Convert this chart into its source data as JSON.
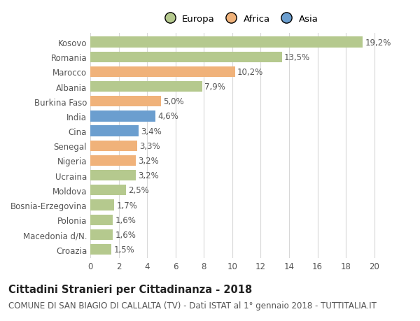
{
  "countries": [
    "Kosovo",
    "Romania",
    "Marocco",
    "Albania",
    "Burkina Faso",
    "India",
    "Cina",
    "Senegal",
    "Nigeria",
    "Ucraina",
    "Moldova",
    "Bosnia-Erzegovina",
    "Polonia",
    "Macedonia d/N.",
    "Croazia"
  ],
  "values": [
    19.2,
    13.5,
    10.2,
    7.9,
    5.0,
    4.6,
    3.4,
    3.3,
    3.2,
    3.2,
    2.5,
    1.7,
    1.6,
    1.6,
    1.5
  ],
  "labels": [
    "19,2%",
    "13,5%",
    "10,2%",
    "7,9%",
    "5,0%",
    "4,6%",
    "3,4%",
    "3,3%",
    "3,2%",
    "3,2%",
    "2,5%",
    "1,7%",
    "1,6%",
    "1,6%",
    "1,5%"
  ],
  "continents": [
    "Europa",
    "Europa",
    "Africa",
    "Europa",
    "Africa",
    "Asia",
    "Asia",
    "Africa",
    "Africa",
    "Europa",
    "Europa",
    "Europa",
    "Europa",
    "Europa",
    "Europa"
  ],
  "colors": {
    "Europa": "#b5c98e",
    "Africa": "#f0b27a",
    "Asia": "#6b9ecf"
  },
  "xlim": [
    0,
    21
  ],
  "xticks": [
    0,
    2,
    4,
    6,
    8,
    10,
    12,
    14,
    16,
    18,
    20
  ],
  "title_bold": "Cittadini Stranieri per Cittadinanza - 2018",
  "subtitle": "COMUNE DI SAN BIAGIO DI CALLALTA (TV) - Dati ISTAT al 1° gennaio 2018 - TUTTITALIA.IT",
  "background_color": "#ffffff",
  "grid_color": "#d8d8d8",
  "bar_height": 0.72,
  "title_fontsize": 10.5,
  "subtitle_fontsize": 8.5,
  "label_fontsize": 8.5,
  "tick_fontsize": 8.5,
  "legend_fontsize": 9.5
}
